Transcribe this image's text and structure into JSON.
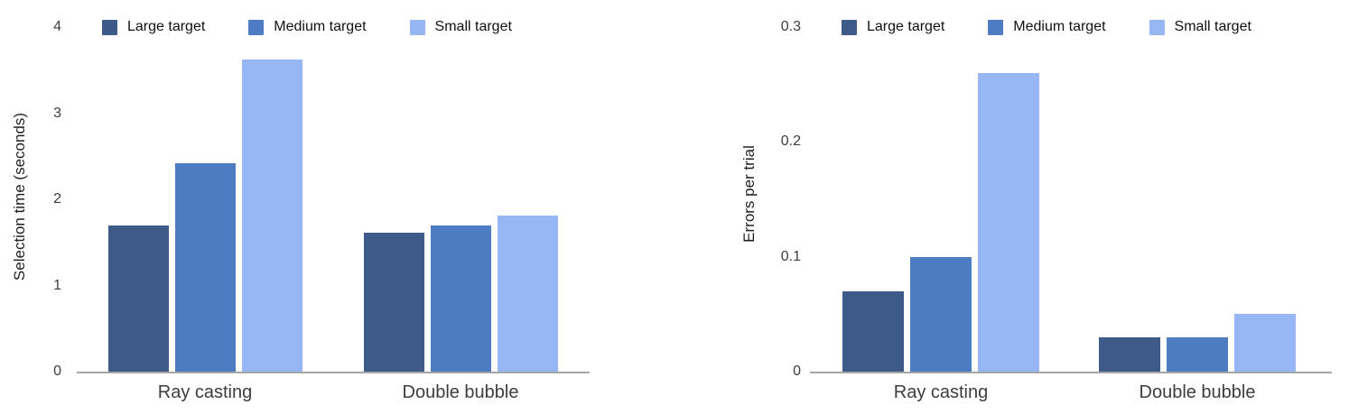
{
  "figure": {
    "background": "#ffffff"
  },
  "palette": {
    "large_target": "#3E5A89",
    "medium_target": "#4D7CC3",
    "small_target": "#96B7F3",
    "axis_line": "#A6A6A6",
    "axis_text": "#3D3D3D",
    "legend_text": "#111111"
  },
  "chart_data": [
    {
      "type": "bar",
      "title": "",
      "xlabel": "",
      "ylabel": "Selection time (seconds)",
      "categories": [
        "Ray casting",
        "Double bubble"
      ],
      "series": [
        {
          "name": "Large target",
          "values": [
            1.7,
            1.61
          ]
        },
        {
          "name": "Medium target",
          "values": [
            2.42,
            1.7
          ]
        },
        {
          "name": "Small target",
          "values": [
            3.62,
            1.81
          ]
        }
      ],
      "colors": [
        "#3E5A89",
        "#4D7CC3",
        "#96B7F3"
      ],
      "ylim": [
        0,
        4
      ],
      "yticks": [
        0,
        1,
        2,
        3,
        4
      ],
      "grid": false,
      "legend_position": "top"
    },
    {
      "type": "bar",
      "title": "",
      "xlabel": "",
      "ylabel": "Errors per trial",
      "categories": [
        "Ray casting",
        "Double bubble"
      ],
      "series": [
        {
          "name": "Large target",
          "values": [
            0.07,
            0.03
          ]
        },
        {
          "name": "Medium target",
          "values": [
            0.1,
            0.03
          ]
        },
        {
          "name": "Small target",
          "values": [
            0.26,
            0.05
          ]
        }
      ],
      "colors": [
        "#3E5A89",
        "#4D7CC3",
        "#96B7F3"
      ],
      "ylim": [
        0,
        0.3
      ],
      "yticks": [
        0,
        0.1,
        0.2,
        0.3
      ],
      "grid": false,
      "legend_position": "top"
    }
  ]
}
